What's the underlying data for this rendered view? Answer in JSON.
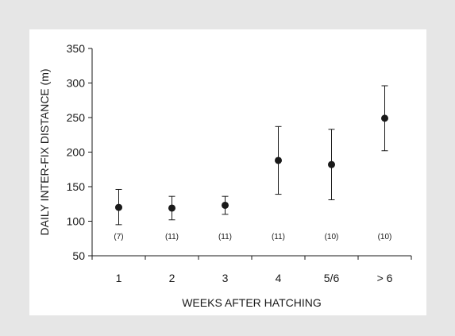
{
  "chart_data": {
    "type": "scatter",
    "categories": [
      "1",
      "2",
      "3",
      "4",
      "5/6",
      "> 6"
    ],
    "series": [
      {
        "values": [
          120,
          119,
          123,
          188,
          182,
          249
        ],
        "error_low": [
          95,
          102,
          110,
          139,
          131,
          202
        ],
        "error_high": [
          146,
          136,
          136,
          237,
          233,
          296
        ],
        "sample_sizes": [
          "(7)",
          "(11)",
          "(11)",
          "(11)",
          "(10)",
          "(10)"
        ]
      }
    ],
    "xlabel": "WEEKS AFTER HATCHING",
    "ylabel": "DAILY INTER-FIX DISTANCE (m)",
    "ylim": [
      50,
      350
    ],
    "yticks": [
      50,
      100,
      150,
      200,
      250,
      300,
      350
    ],
    "sample_size_y": 79,
    "grid": false,
    "colors": {
      "outer_background": "#e6e6e6",
      "panel_background": "#ffffff",
      "marker": "#1a1a1a",
      "axis": "#1a1a1a"
    }
  }
}
